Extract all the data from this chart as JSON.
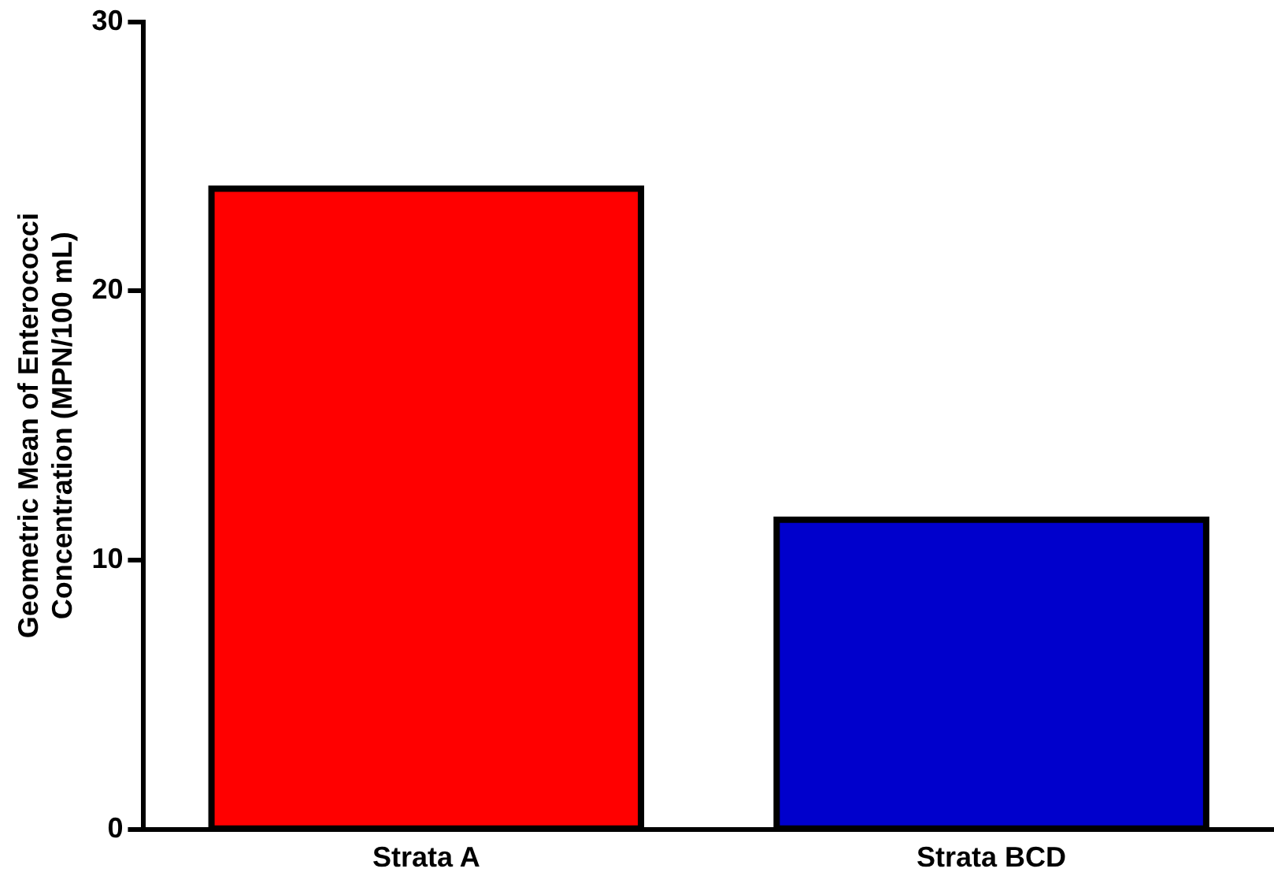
{
  "chart_data": {
    "type": "bar",
    "ylabel": "Geometric Mean of Enterococci Concentration (MPN/100 mL)",
    "categories": [
      "Strata A",
      "Strata BCD"
    ],
    "values": [
      23.8,
      11.5
    ],
    "colors": [
      "#ff0000",
      "#0000cc"
    ],
    "ylim": [
      0,
      30
    ],
    "yticks": [
      0,
      10,
      20,
      30
    ],
    "grid": false,
    "legend": false
  }
}
